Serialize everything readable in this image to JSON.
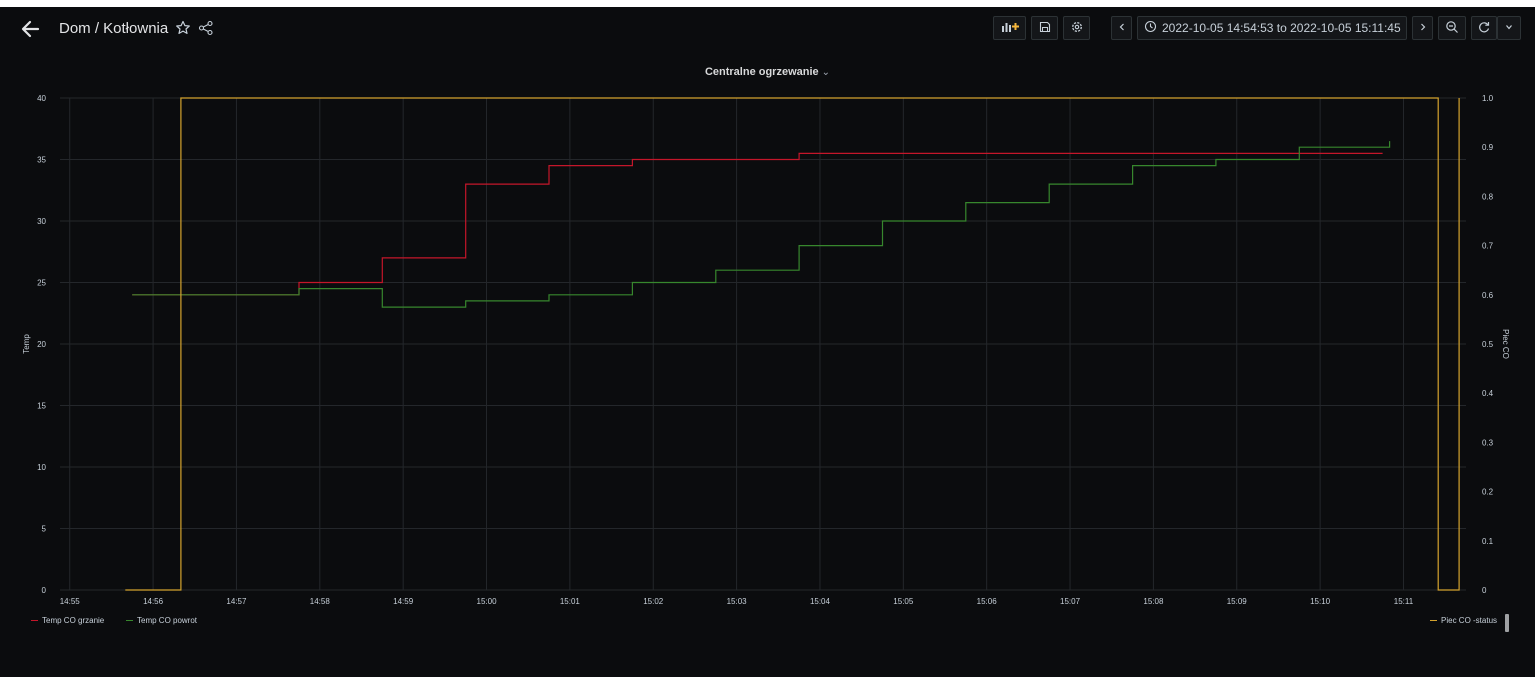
{
  "dashboard": {
    "breadcrumb": "Dom / Kotłownia",
    "time_range": "2022-10-05 14:54:53 to 2022-10-05 15:11:45"
  },
  "toolbar": {
    "icons": [
      "add-panel-icon",
      "save-icon",
      "settings-icon",
      "chevron-left-icon",
      "clock-icon",
      "chevron-down-icon",
      "chevron-right-icon",
      "zoom-out-icon",
      "refresh-icon",
      "chevron-down-icon"
    ]
  },
  "panel": {
    "title": "Centralne ogrzewanie"
  },
  "chart_data": {
    "type": "line",
    "title": "Centralne ogrzewanie",
    "xlabel": "",
    "ylabel": "Temp",
    "ylabel_right": "Piec CO",
    "xlim": [
      "14:54:53",
      "15:11:45"
    ],
    "ylim": [
      0,
      40
    ],
    "ylim_right": [
      0,
      1
    ],
    "x_ticks": [
      "14:55",
      "14:56",
      "14:57",
      "14:58",
      "14:59",
      "15:00",
      "15:01",
      "15:02",
      "15:03",
      "15:04",
      "15:05",
      "15:06",
      "15:07",
      "15:08",
      "15:09",
      "15:10",
      "15:11"
    ],
    "y_ticks": [
      "0",
      "5",
      "10",
      "15",
      "20",
      "25",
      "30",
      "35",
      "40"
    ],
    "y_ticks_right": [
      "0",
      "0.1",
      "0.2",
      "0.3",
      "0.4",
      "0.5",
      "0.6",
      "0.7",
      "0.8",
      "0.9",
      "1.0"
    ],
    "grid": true,
    "step": true,
    "legend_position": "bottom",
    "series": [
      {
        "name": "Temp CO grzanie",
        "color": "#c4162a",
        "axis": "left",
        "points": [
          [
            "14:55:45",
            24
          ],
          [
            "14:57:45",
            25
          ],
          [
            "14:58:45",
            27
          ],
          [
            "14:59:45",
            33
          ],
          [
            "15:00:45",
            34.5
          ],
          [
            "15:01:45",
            35
          ],
          [
            "15:03:45",
            35.5
          ],
          [
            "15:10:45",
            35.5
          ]
        ]
      },
      {
        "name": "Temp CO powrot",
        "color": "#37872d",
        "axis": "left",
        "points": [
          [
            "14:55:45",
            24
          ],
          [
            "14:57:45",
            24.5
          ],
          [
            "14:58:45",
            23
          ],
          [
            "14:59:45",
            23.5
          ],
          [
            "15:00:45",
            24
          ],
          [
            "15:01:45",
            25
          ],
          [
            "15:02:45",
            26
          ],
          [
            "15:03:45",
            28
          ],
          [
            "15:04:45",
            30
          ],
          [
            "15:05:45",
            31.5
          ],
          [
            "15:06:45",
            33
          ],
          [
            "15:07:45",
            34.5
          ],
          [
            "15:08:45",
            35
          ],
          [
            "15:09:45",
            36
          ],
          [
            "15:10:50",
            36.5
          ]
        ]
      },
      {
        "name": "Piec CO -status",
        "color": "#d4a32e",
        "axis": "right",
        "points": [
          [
            "14:55:40",
            0
          ],
          [
            "14:56:20",
            1
          ],
          [
            "15:11:25",
            0
          ],
          [
            "15:11:40",
            1
          ]
        ]
      }
    ]
  }
}
